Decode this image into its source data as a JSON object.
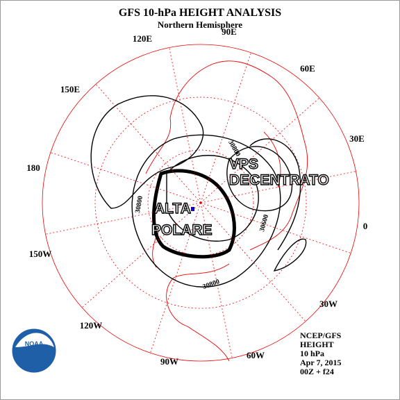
{
  "header": {
    "title": "GFS 10-hPa HEIGHT ANALYSIS",
    "subtitle": "Northern Hemisphere"
  },
  "longitude_labels": [
    "90E",
    "60E",
    "30E",
    "0",
    "30W",
    "60W",
    "90W",
    "120W",
    "150W",
    "180",
    "150E",
    "120E"
  ],
  "contour_labels": [
    "30800",
    "30800",
    "30800",
    "30600"
  ],
  "annotations": {
    "vortex": [
      "VPS",
      "DECENTRATO"
    ],
    "high": [
      "ALTA",
      "POLARE"
    ]
  },
  "footer": [
    "NCEP/GFS",
    "HEIGHT",
    "10 hPa",
    "Apr 7, 2015",
    "00Z + f24"
  ],
  "logo": "NOAA"
}
